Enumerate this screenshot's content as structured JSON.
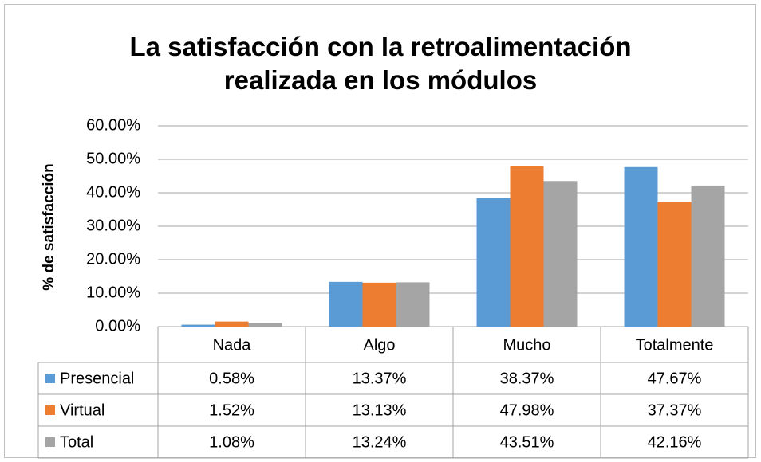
{
  "chart_data": {
    "type": "bar",
    "title": "La satisfacción con la retroalimentación realizada en los módulos",
    "y_label": "% de satisfacción",
    "categories": [
      "Nada",
      "Algo",
      "Mucho",
      "Totalmente"
    ],
    "series": [
      {
        "name": "Presencial",
        "color": "#5b9bd5",
        "values": [
          0.58,
          13.37,
          38.37,
          47.67
        ],
        "value_labels": [
          "0.58%",
          "13.37%",
          "38.37%",
          "47.67%"
        ]
      },
      {
        "name": "Virtual",
        "color": "#ed7d31",
        "values": [
          1.52,
          13.13,
          47.98,
          37.37
        ],
        "value_labels": [
          "1.52%",
          "13.13%",
          "47.98%",
          "37.37%"
        ]
      },
      {
        "name": "Total",
        "color": "#a5a5a5",
        "values": [
          1.08,
          13.24,
          43.51,
          42.16
        ],
        "value_labels": [
          "1.08%",
          "13.24%",
          "43.51%",
          "42.16%"
        ]
      }
    ],
    "ylim": [
      0,
      60
    ],
    "yticks": [
      {
        "value": 0,
        "label": "0.00%"
      },
      {
        "value": 10,
        "label": "10.00%"
      },
      {
        "value": 20,
        "label": "20.00%"
      },
      {
        "value": 30,
        "label": "30.00%"
      },
      {
        "value": 40,
        "label": "40.00%"
      },
      {
        "value": 50,
        "label": "50.00%"
      },
      {
        "value": 60,
        "label": "60.00%"
      }
    ],
    "grid": true
  }
}
